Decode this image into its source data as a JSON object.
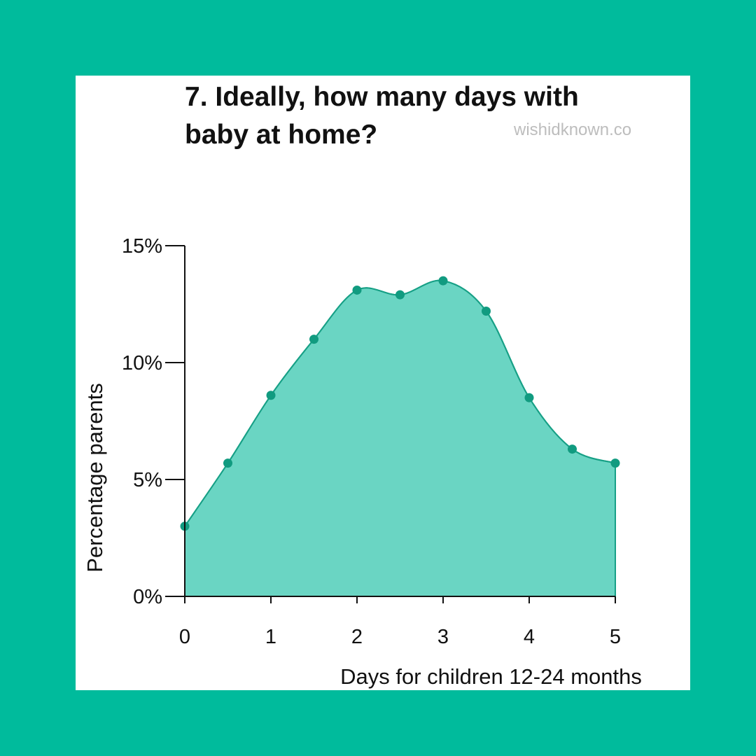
{
  "page": {
    "background_color": "#00bb9c",
    "card_color": "#ffffff"
  },
  "header": {
    "title_line1": "7. Ideally, how many days with",
    "title_line2": "baby at home?",
    "source": "wishidknown.co"
  },
  "chart_data": {
    "type": "area",
    "title": "7. Ideally, how many days with baby at home?",
    "xlabel": "Days for children 12-24 months",
    "ylabel": "Percentage parents",
    "x": [
      0,
      0.5,
      1,
      1.5,
      2,
      2.5,
      3,
      3.5,
      4,
      4.5,
      5
    ],
    "values": [
      3.0,
      5.7,
      8.6,
      11.0,
      13.1,
      12.9,
      13.5,
      12.2,
      8.5,
      6.3,
      5.7
    ],
    "xlim": [
      0,
      5
    ],
    "ylim": [
      0,
      15
    ],
    "x_ticks": [
      0,
      1,
      2,
      3,
      4,
      5
    ],
    "x_tick_labels": [
      "0",
      "1",
      "2",
      "3",
      "4",
      "5"
    ],
    "y_ticks": [
      0,
      5,
      10,
      15
    ],
    "y_tick_labels": [
      "0%",
      "5%",
      "10%",
      "15%"
    ],
    "grid": false,
    "colors": {
      "fill": "#6ad5c3",
      "line": "#17a086",
      "point": "#119b80",
      "axis": "#111111"
    }
  }
}
